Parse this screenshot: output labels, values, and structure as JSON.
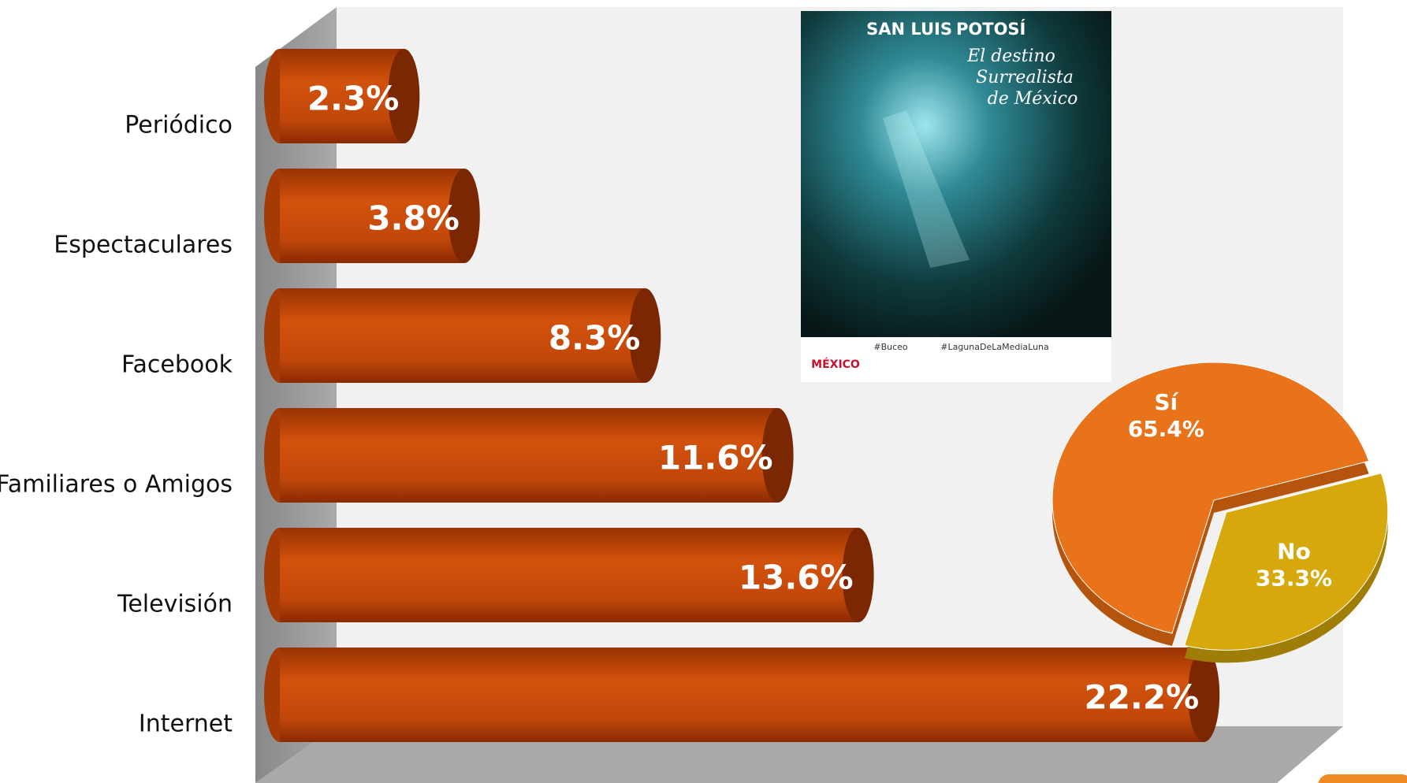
{
  "chart_data": [
    {
      "type": "bar",
      "categories": [
        "Periódico",
        "Espectaculares",
        "Facebook",
        "Familiares o Amigos",
        "Televisión",
        "Internet"
      ],
      "values": [
        2.3,
        3.8,
        8.3,
        11.6,
        13.6,
        22.2
      ],
      "value_labels": [
        "2.3%",
        "3.8%",
        "8.3%",
        "11.6%",
        "13.6%",
        "22.2%"
      ],
      "color": "#c8480a"
    },
    {
      "type": "pie",
      "categories": [
        "Sí",
        "No"
      ],
      "values": [
        65.4,
        33.3
      ],
      "value_labels": [
        "65.4%",
        "33.3%"
      ],
      "colors": [
        "#e8731a",
        "#d6a80c"
      ]
    }
  ],
  "poster": {
    "title_light": "SAN LUIS",
    "title_bold": "POTOSÍ",
    "slogan": [
      "El destino",
      "Surrealista",
      "de México"
    ],
    "tags": [
      "#Buceo",
      "#LagunaDeLaMediaLuna"
    ],
    "logo": "MÉXICO"
  }
}
